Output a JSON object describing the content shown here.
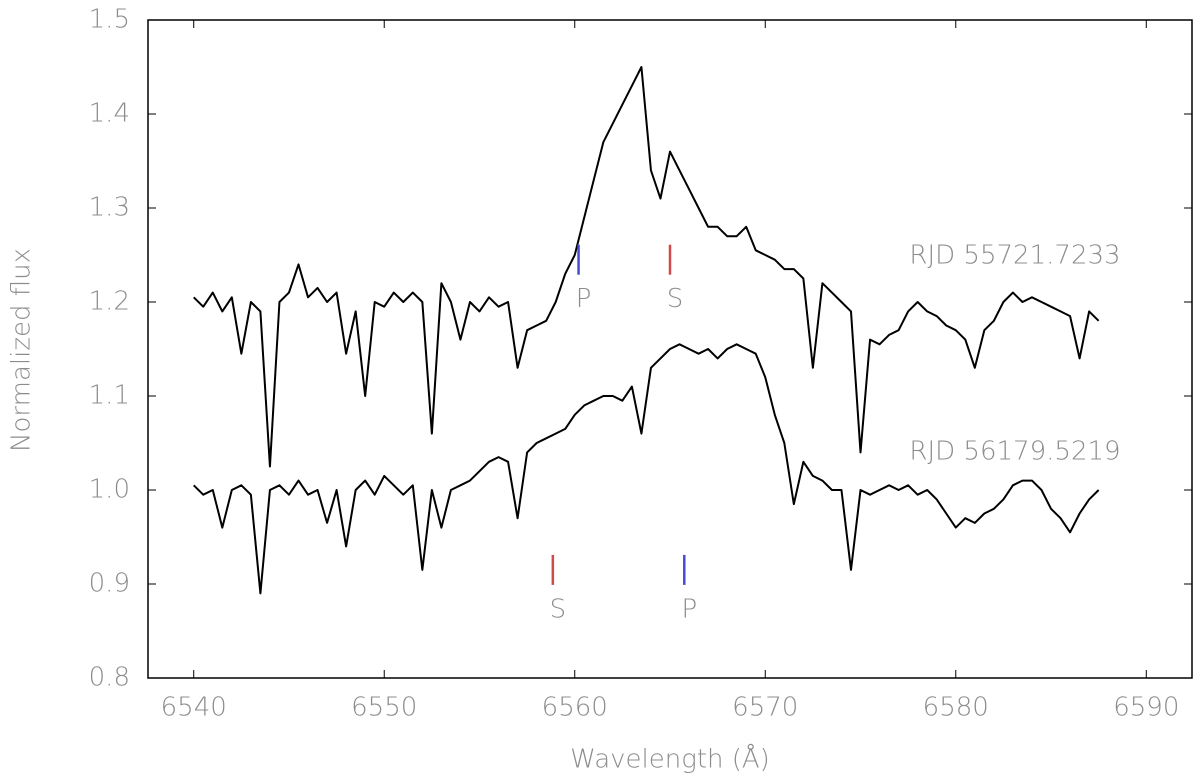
{
  "chart_data": {
    "type": "line",
    "x_label": "Wavelength (Å)",
    "y_label": "Normalized flux",
    "xlim": [
      6537.6,
      6592.4
    ],
    "ylim": [
      0.8,
      1.5
    ],
    "xticks": [
      6540,
      6550,
      6560,
      6570,
      6580,
      6590
    ],
    "yticks": [
      {
        "value": 0.8,
        "label": "0.8"
      },
      {
        "value": 0.9,
        "label": "0.9"
      },
      {
        "value": 1,
        "label": "1.0"
      },
      1.1,
      1.2,
      1.3,
      1.4,
      1.5
    ],
    "x": [
      6540,
      6540.5,
      6541,
      6541.5,
      6542,
      6542.5,
      6543,
      6543.5,
      6544,
      6544.5,
      6545,
      6545.5,
      6546,
      6546.5,
      6547,
      6547.5,
      6548,
      6548.5,
      6549,
      6549.5,
      6550,
      6550.5,
      6551,
      6551.5,
      6552,
      6552.5,
      6553,
      6553.5,
      6554,
      6554.5,
      6555,
      6555.5,
      6556,
      6556.5,
      6557,
      6557.5,
      6558,
      6558.5,
      6559,
      6559.5,
      6560,
      6560.5,
      6561,
      6561.5,
      6562,
      6562.5,
      6563,
      6563.5,
      6564,
      6564.5,
      6565,
      6565.5,
      6566,
      6566.5,
      6567,
      6567.5,
      6568,
      6568.5,
      6569,
      6569.5,
      6570,
      6570.5,
      6571,
      6571.5,
      6572,
      6572.5,
      6573,
      6573.5,
      6574,
      6574.5,
      6575,
      6575.5,
      6576,
      6576.5,
      6577,
      6577.5,
      6578,
      6578.5,
      6579,
      6579.5,
      6580,
      6580.5,
      6581,
      6581.5,
      6582,
      6582.5,
      6583,
      6583.5,
      6584,
      6584.5,
      6585,
      6585.5,
      6586,
      6586.5,
      6587,
      6587.5
    ],
    "series": [
      {
        "name": "RJD 55721.7233",
        "color": "#000000",
        "values": [
          1.205,
          1.195,
          1.21,
          1.19,
          1.205,
          1.145,
          1.2,
          1.19,
          1.025,
          1.2,
          1.21,
          1.24,
          1.205,
          1.215,
          1.2,
          1.21,
          1.145,
          1.19,
          1.1,
          1.2,
          1.195,
          1.21,
          1.2,
          1.21,
          1.2,
          1.06,
          1.22,
          1.2,
          1.16,
          1.2,
          1.19,
          1.205,
          1.195,
          1.2,
          1.13,
          1.17,
          1.175,
          1.18,
          1.2,
          1.23,
          1.25,
          1.29,
          1.33,
          1.37,
          1.39,
          1.41,
          1.43,
          1.45,
          1.34,
          1.31,
          1.36,
          1.34,
          1.32,
          1.3,
          1.28,
          1.28,
          1.27,
          1.27,
          1.28,
          1.255,
          1.25,
          1.245,
          1.235,
          1.235,
          1.225,
          1.13,
          1.22,
          1.21,
          1.2,
          1.19,
          1.04,
          1.16,
          1.155,
          1.165,
          1.17,
          1.19,
          1.2,
          1.19,
          1.185,
          1.175,
          1.17,
          1.16,
          1.13,
          1.17,
          1.18,
          1.2,
          1.21,
          1.2,
          1.205,
          1.2,
          1.195,
          1.19,
          1.185,
          1.14,
          1.19,
          1.18
        ]
      },
      {
        "name": "RJD 56179.5219",
        "color": "#000000",
        "values": [
          1.005,
          0.995,
          1.0,
          0.96,
          1.0,
          1.005,
          0.995,
          0.89,
          1.0,
          1.005,
          0.995,
          1.01,
          0.995,
          1.0,
          0.965,
          1.0,
          0.94,
          1.0,
          1.01,
          0.995,
          1.015,
          1.005,
          0.995,
          1.005,
          0.915,
          1.0,
          0.96,
          1.0,
          1.005,
          1.01,
          1.02,
          1.03,
          1.035,
          1.03,
          0.97,
          1.04,
          1.05,
          1.055,
          1.06,
          1.065,
          1.08,
          1.09,
          1.095,
          1.1,
          1.1,
          1.095,
          1.11,
          1.06,
          1.13,
          1.14,
          1.15,
          1.155,
          1.15,
          1.145,
          1.15,
          1.14,
          1.15,
          1.155,
          1.15,
          1.145,
          1.12,
          1.08,
          1.05,
          0.985,
          1.03,
          1.015,
          1.01,
          1.0,
          1.0,
          0.915,
          1.0,
          0.995,
          1.0,
          1.005,
          1.0,
          1.005,
          0.995,
          1.0,
          0.99,
          0.975,
          0.96,
          0.97,
          0.965,
          0.975,
          0.98,
          0.99,
          1.005,
          1.01,
          1.01,
          1.0,
          0.98,
          0.97,
          0.955,
          0.975,
          0.99,
          1.0
        ]
      }
    ],
    "markers": [
      {
        "text": "P",
        "x": 6560.2,
        "y": 1.245,
        "color": "#4a4ad0"
      },
      {
        "text": "S",
        "x": 6565.0,
        "y": 1.245,
        "color": "#d04a4a"
      },
      {
        "text": "S",
        "x": 6558.85,
        "y": 0.915,
        "color": "#d04a4a"
      },
      {
        "text": "P",
        "x": 6565.75,
        "y": 0.915,
        "color": "#4a4ad0"
      }
    ]
  }
}
